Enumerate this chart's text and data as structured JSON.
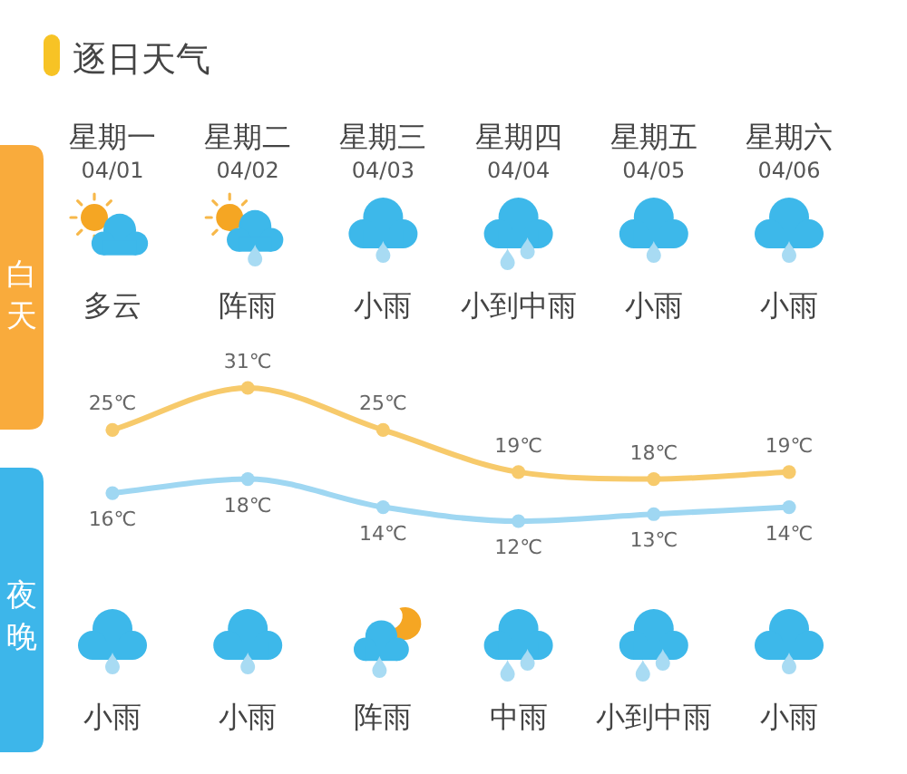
{
  "chart_data": {
    "type": "line",
    "title": "逐日天气",
    "categories": [
      "星期一\n04/01",
      "星期二\n04/02",
      "星期三\n04/03",
      "星期四\n04/04",
      "星期五\n04/05",
      "星期六\n04/06"
    ],
    "series": [
      {
        "color": "#f7ca6b",
        "values": [
          25,
          31,
          25,
          19,
          18,
          19
        ],
        "value_labels": [
          "25℃",
          "31℃",
          "25℃",
          "19℃",
          "18℃",
          "19℃"
        ]
      },
      {
        "color": "#9fd7f2",
        "values": [
          16,
          18,
          14,
          12,
          13,
          14
        ],
        "value_labels": [
          "16℃",
          "18℃",
          "14℃",
          "12℃",
          "13℃",
          "14℃"
        ]
      }
    ],
    "marker": "circle",
    "annotations": [
      "白天",
      "多云",
      "阵雨",
      "小雨",
      "小到中雨",
      "小雨",
      "小雨",
      "夜晚",
      "小雨",
      "小雨",
      "阵雨",
      "中雨",
      "小到中雨",
      "小雨"
    ]
  }
}
